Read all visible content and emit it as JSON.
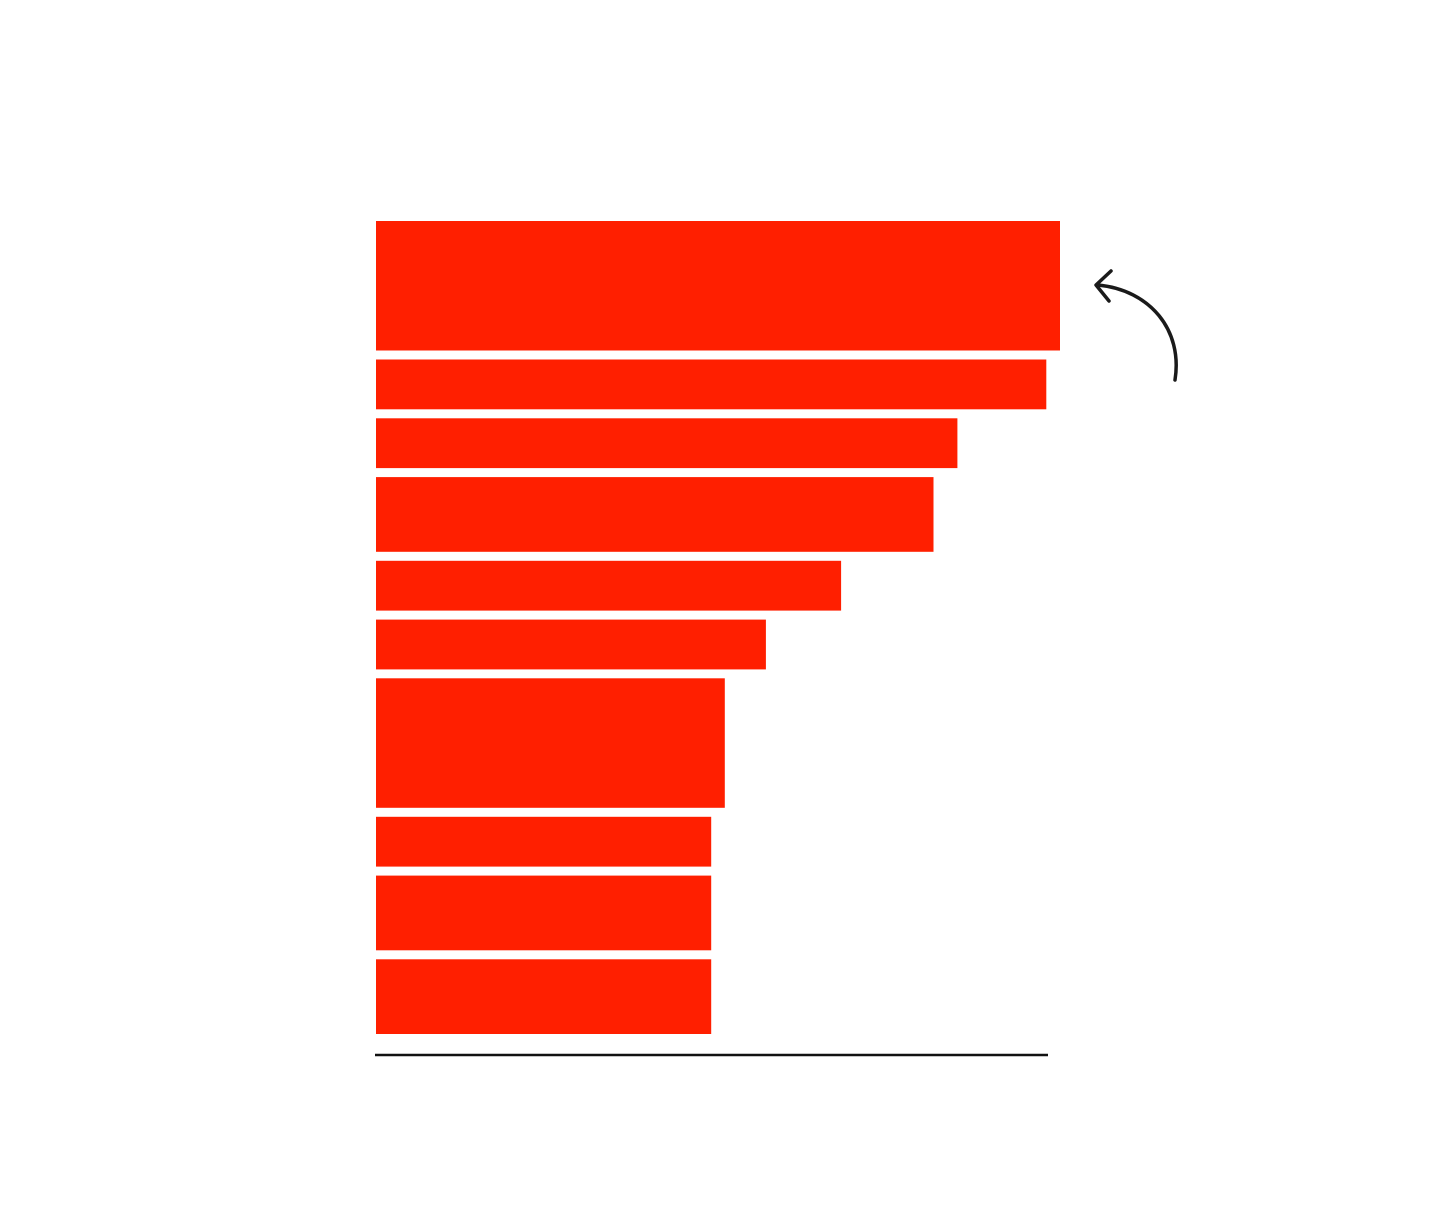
{
  "chart_data": {
    "type": "bar",
    "orientation": "horizontal",
    "title": "",
    "xlabel": "",
    "ylabel": "",
    "grid": false,
    "legend": "none",
    "bar_color": "#ff1f00",
    "axis_color": "#111111",
    "annotation": {
      "type": "curved-arrow",
      "points_to": "bar-1",
      "color": "#1a1a1a"
    },
    "xlim": [
      0,
      100
    ],
    "values": [
      100,
      98,
      85,
      81.5,
      68,
      57,
      51,
      49,
      49,
      49
    ],
    "band_weights": [
      2.6,
      1,
      1,
      1.5,
      1,
      1,
      2.6,
      1,
      1.5,
      1.5
    ]
  }
}
